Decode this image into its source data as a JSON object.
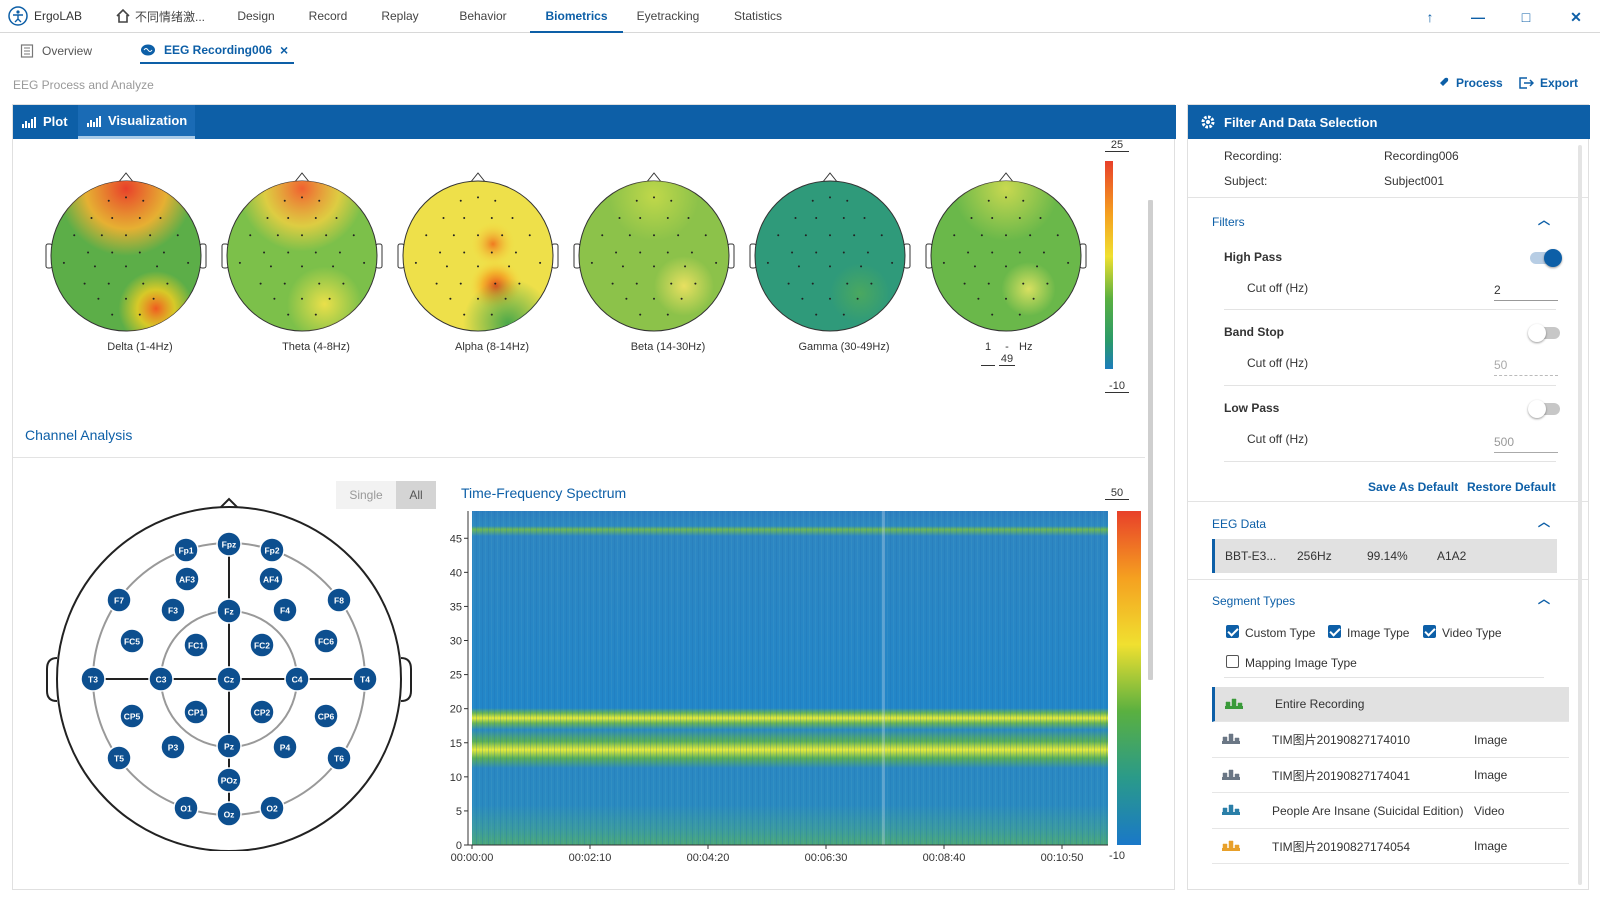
{
  "app": {
    "name": "ErgoLAB",
    "project": "不同情绪激..."
  },
  "nav": [
    {
      "label": "Design",
      "active": false
    },
    {
      "label": "Record",
      "active": false
    },
    {
      "label": "Replay",
      "active": false
    },
    {
      "label": "Behavior",
      "active": false
    },
    {
      "label": "Biometrics",
      "active": true
    },
    {
      "label": "Eyetracking",
      "active": false
    },
    {
      "label": "Statistics",
      "active": false
    }
  ],
  "window_buttons": {
    "up": "↑",
    "minimize": "—",
    "maximize": "□",
    "close": "✕"
  },
  "tabs": [
    {
      "label": "Overview",
      "icon": "document-icon"
    },
    {
      "label": "EEG Recording006",
      "icon": "brain-icon",
      "close": "×"
    }
  ],
  "subtitle": "EEG Process and Analyze",
  "actions": {
    "process": "Process",
    "export": "Export"
  },
  "left_panel": {
    "tabs": [
      {
        "label": "Plot",
        "active": false
      },
      {
        "label": "Visualization",
        "active": true
      }
    ],
    "topomaps": [
      {
        "label": "Delta (1-4Hz)",
        "palette": "delta"
      },
      {
        "label": "Theta (4-8Hz)",
        "palette": "theta"
      },
      {
        "label": "Alpha (8-14Hz)",
        "palette": "alpha"
      },
      {
        "label": "Beta (14-30Hz)",
        "palette": "beta"
      },
      {
        "label": "Gamma (30-49Hz)",
        "palette": "gamma"
      },
      {
        "label": "",
        "palette": "custom",
        "range_from": "1",
        "range_to": "- 49",
        "unit": "Hz"
      }
    ],
    "topo_colorbar": {
      "max": "25",
      "min": "-10"
    },
    "channel_analysis_title": "Channel Analysis",
    "mode_toggle": {
      "single": "Single",
      "all": "All",
      "selected": "All"
    },
    "electrodes": [
      "Fpz",
      "Fp1",
      "Fp2",
      "AF3",
      "AF4",
      "F7",
      "F3",
      "Fz",
      "F4",
      "F8",
      "FC5",
      "FC1",
      "FC2",
      "FC6",
      "T3",
      "C3",
      "Cz",
      "C4",
      "T4",
      "CP5",
      "CP1",
      "CP2",
      "CP6",
      "T5",
      "P3",
      "Pz",
      "P4",
      "T6",
      "POz",
      "O1",
      "Oz",
      "O2"
    ],
    "spectrum": {
      "title": "Time-Frequency Spectrum",
      "y_ticks": [
        "45",
        "40",
        "35",
        "30",
        "25",
        "20",
        "15",
        "10",
        "5",
        "0"
      ],
      "x_ticks": [
        "00:00:00",
        "00:02:10",
        "00:04:20",
        "00:06:30",
        "00:08:40",
        "00:10:50"
      ],
      "colorbar": {
        "max": "50",
        "min": "-10"
      }
    }
  },
  "right_panel": {
    "title": "Filter And Data Selection",
    "recording_label": "Recording:",
    "recording_value": "Recording006",
    "subject_label": "Subject:",
    "subject_value": "Subject001",
    "filters_title": "Filters",
    "filters": [
      {
        "name": "High Pass",
        "enabled": true,
        "cutoff_label": "Cut off (Hz)",
        "cutoff": "2"
      },
      {
        "name": "Band Stop",
        "enabled": false,
        "cutoff_label": "Cut off (Hz)",
        "cutoff": "50"
      },
      {
        "name": "Low Pass",
        "enabled": false,
        "cutoff_label": "Cut off (Hz)",
        "cutoff": "500"
      }
    ],
    "save_default": "Save As Default",
    "restore_default": "Restore Default",
    "eeg_data_title": "EEG Data",
    "eeg_data_row": {
      "device": "BBT-E3...",
      "rate": "256Hz",
      "quality": "99.14%",
      "ref": "A1A2"
    },
    "segment_title": "Segment Types",
    "segment_checks": [
      {
        "label": "Custom Type",
        "checked": true
      },
      {
        "label": "Image Type",
        "checked": true
      },
      {
        "label": "Video Type",
        "checked": true
      },
      {
        "label": "Mapping Image Type",
        "checked": false
      }
    ],
    "segments": [
      {
        "name": "Entire Recording",
        "type": "",
        "color": "#3a9a3a",
        "selected": true
      },
      {
        "name": "TIM图片20190827174010",
        "type": "Image",
        "color": "#6b7785",
        "selected": false
      },
      {
        "name": "TIM图片20190827174041",
        "type": "Image",
        "color": "#6b7785",
        "selected": false
      },
      {
        "name": "People Are Insane (Suicidal Edition)",
        "type": "Video",
        "color": "#2a7fa8",
        "selected": false
      },
      {
        "name": "TIM图片20190827174054",
        "type": "Image",
        "color": "#e8a02a",
        "selected": false
      }
    ]
  }
}
